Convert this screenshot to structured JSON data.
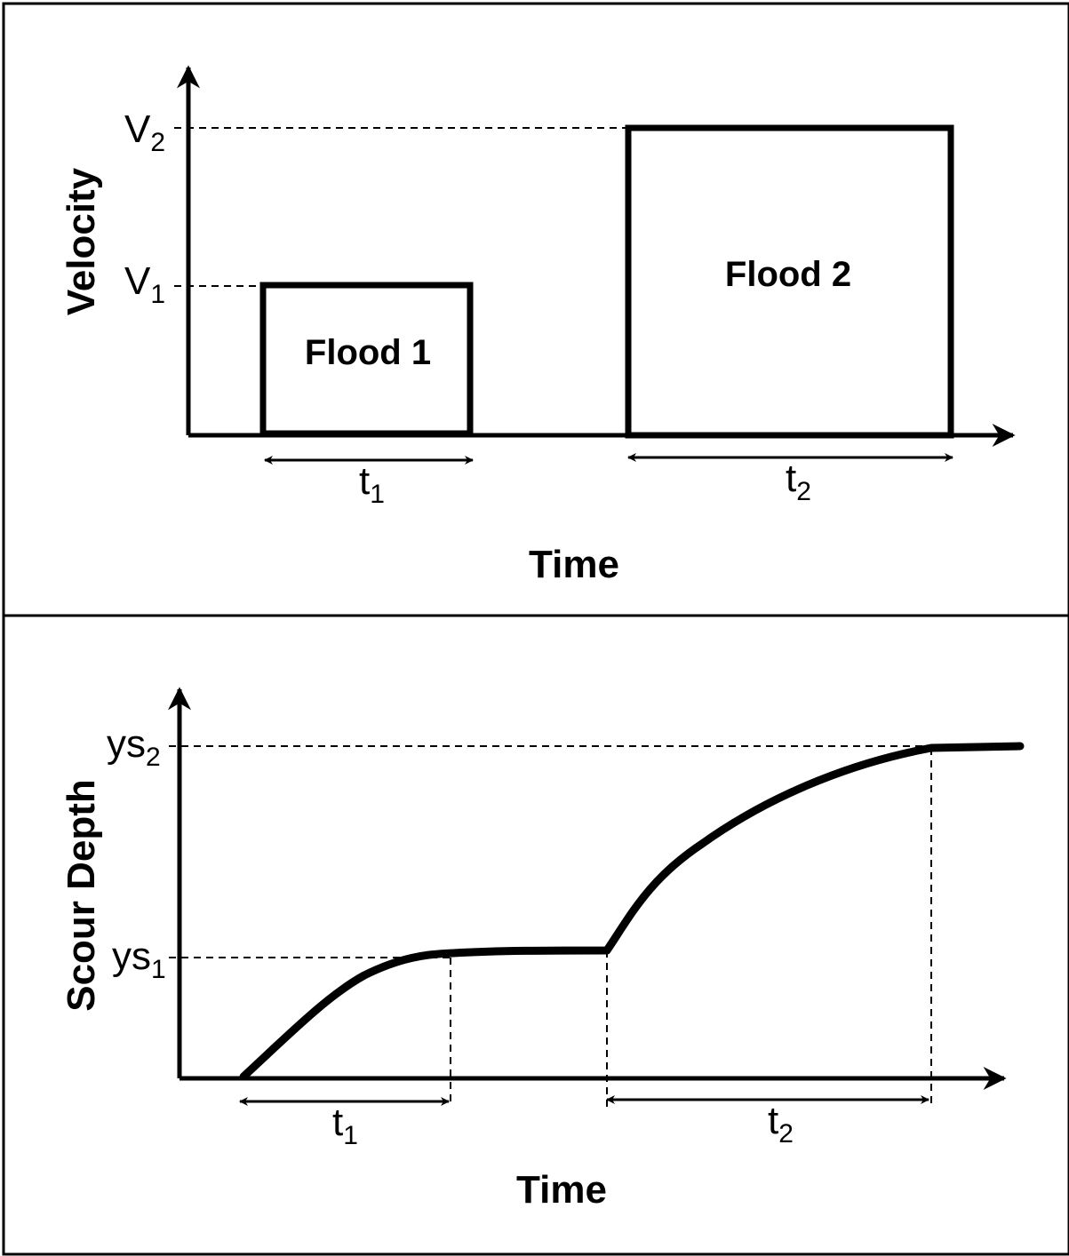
{
  "colors": {
    "ink": "#000000",
    "background": "#ffffff"
  },
  "top_panel": {
    "ylabel": "Velocity",
    "xlabel": "Time",
    "levels": [
      {
        "base": "V",
        "sub": "1"
      },
      {
        "base": "V",
        "sub": "2"
      }
    ],
    "boxes": [
      {
        "label": "Flood 1"
      },
      {
        "label": "Flood 2"
      }
    ],
    "durations": [
      {
        "base": "t",
        "sub": "1"
      },
      {
        "base": "t",
        "sub": "2"
      }
    ]
  },
  "bottom_panel": {
    "ylabel": "Scour Depth",
    "xlabel": "Time",
    "levels": [
      {
        "base": "ys",
        "sub": "1"
      },
      {
        "base": "ys",
        "sub": "2"
      }
    ],
    "durations": [
      {
        "base": "t",
        "sub": "1"
      },
      {
        "base": "t",
        "sub": "2"
      }
    ]
  }
}
